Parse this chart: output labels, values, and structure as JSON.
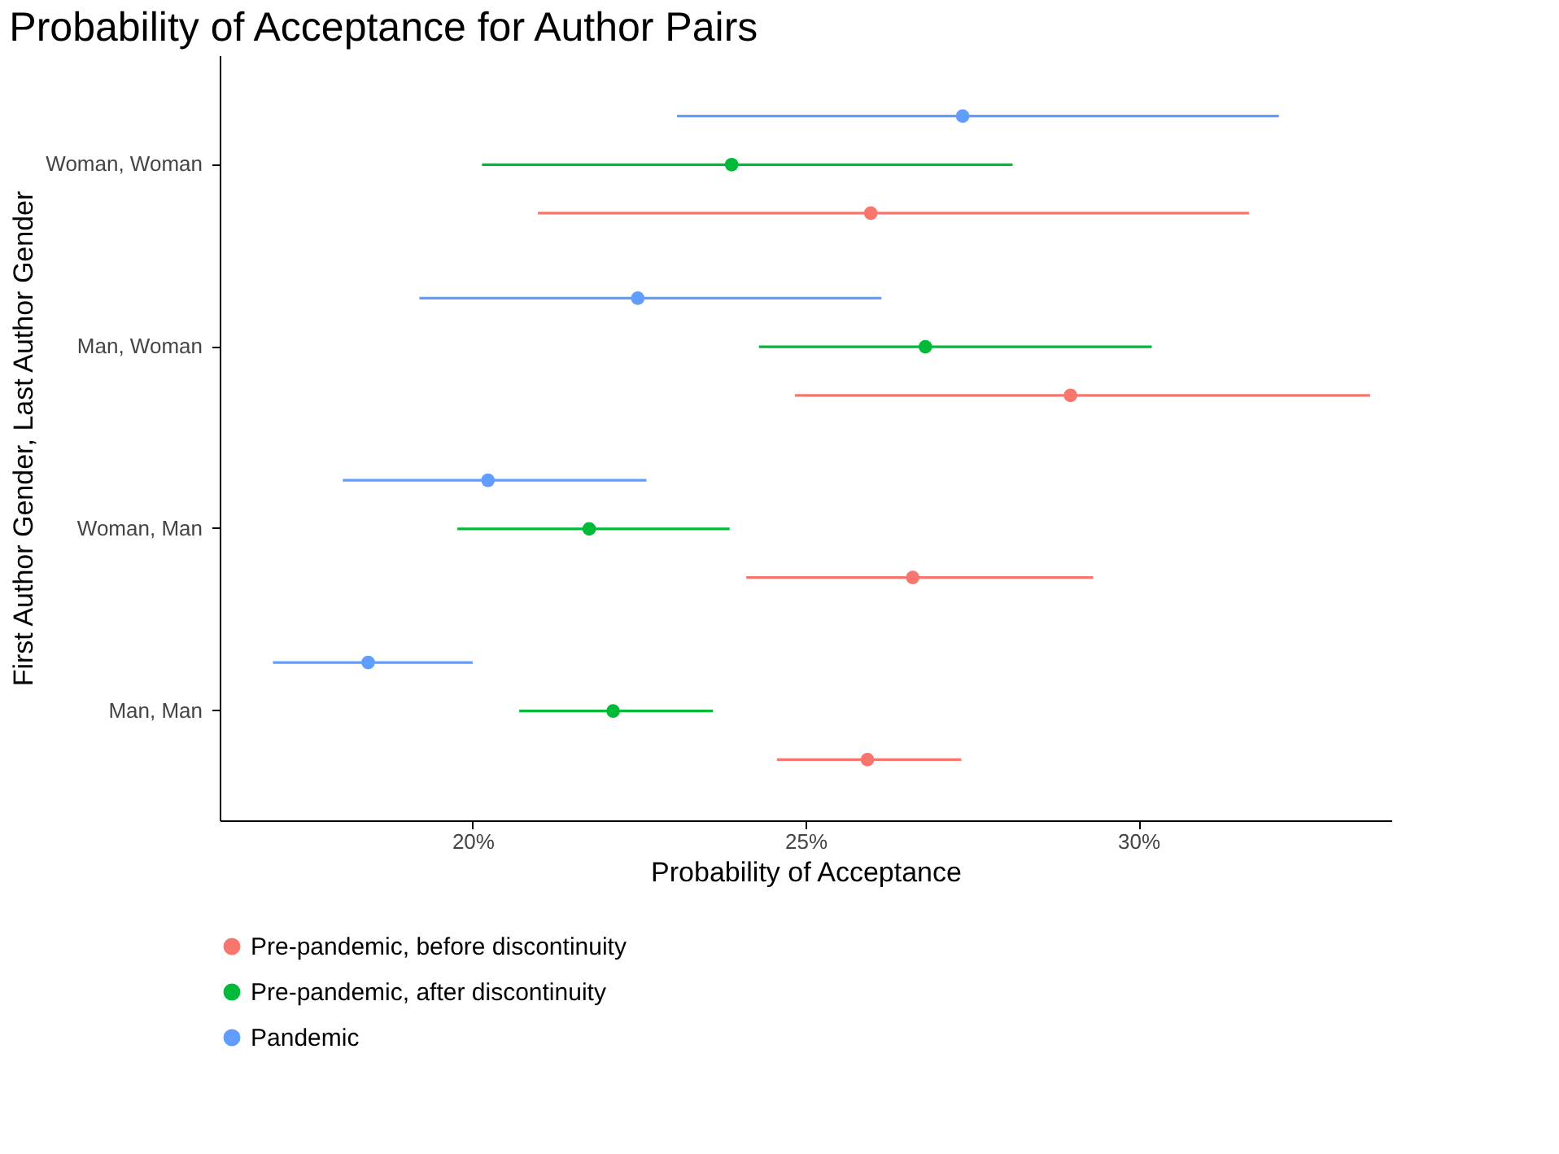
{
  "chart_data": {
    "type": "scatter",
    "orientation": "horizontal",
    "title": "Probability of Acceptance for Author Pairs",
    "xlabel": "Probability of Acceptance",
    "ylabel": "First Author Gender, Last Author Gender",
    "categories": [
      "Woman, Woman",
      "Man, Woman",
      "Woman, Man",
      "Man, Man"
    ],
    "series": [
      {
        "name": "Pre-pandemic, before discontinuity",
        "color": "#f8766d",
        "values": [
          25.98,
          28.98,
          26.61,
          25.93
        ],
        "errors": [
          [
            20.98,
            31.66
          ],
          [
            24.84,
            33.48
          ],
          [
            24.11,
            29.32
          ],
          [
            24.57,
            27.34
          ]
        ]
      },
      {
        "name": "Pre-pandemic, after discontinuity",
        "color": "#00ba38",
        "values": [
          23.89,
          26.8,
          21.75,
          22.11
        ],
        "errors": [
          [
            20.14,
            28.11
          ],
          [
            24.3,
            30.2
          ],
          [
            19.77,
            23.86
          ],
          [
            20.7,
            23.61
          ]
        ]
      },
      {
        "name": "Pandemic",
        "color": "#619cff",
        "values": [
          27.36,
          22.48,
          20.23,
          18.43
        ],
        "errors": [
          [
            23.07,
            32.11
          ],
          [
            19.2,
            26.14
          ],
          [
            18.05,
            22.61
          ],
          [
            17.0,
            20.0
          ]
        ]
      }
    ],
    "xlim": [
      16.2,
      33.8
    ],
    "xticks": [
      {
        "value": 20,
        "label": "20%"
      },
      {
        "value": 25,
        "label": "25%"
      },
      {
        "value": 30,
        "label": "30%"
      }
    ],
    "marker": "circle",
    "grid": false,
    "legend": "bottom"
  }
}
